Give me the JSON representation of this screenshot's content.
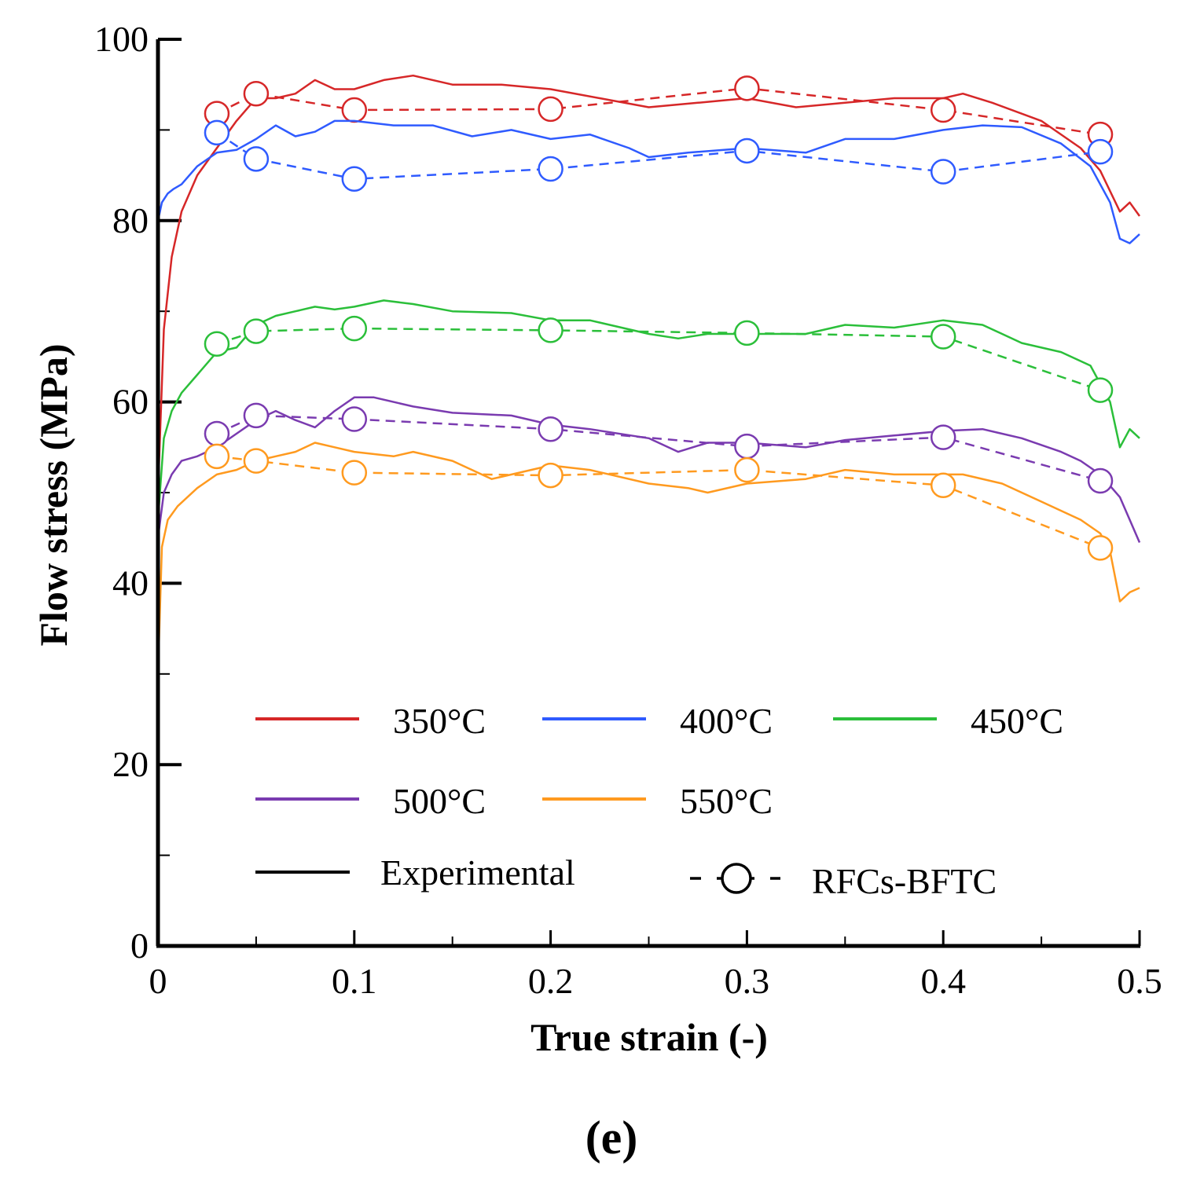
{
  "chart_data": {
    "type": "line",
    "title": "",
    "panel_label": "(e)",
    "xlabel": "True strain (-)",
    "ylabel": "Flow stress (MPa)",
    "xlim": [
      0,
      0.5
    ],
    "ylim": [
      0,
      100
    ],
    "x_ticks": [
      0,
      0.1,
      0.2,
      0.3,
      0.4,
      0.5
    ],
    "x_tick_labels": [
      "0",
      "0.1",
      "0.2",
      "0.3",
      "0.4",
      "0.5"
    ],
    "y_ticks": [
      0,
      20,
      40,
      60,
      80,
      100
    ],
    "y_tick_labels": [
      "0",
      "20",
      "40",
      "60",
      "80",
      "100"
    ],
    "grid": false,
    "legend": {
      "placement": "bottom-center",
      "temperatures": [
        "350°C",
        "400°C",
        "450°C",
        "500°C",
        "550°C"
      ],
      "experimental_label": "Experimental",
      "model_label": "RFCs-BFTC"
    },
    "series": [
      {
        "name": "350°C",
        "color": "#d62728",
        "experimental": {
          "x": [
            0,
            0.003,
            0.007,
            0.012,
            0.02,
            0.03,
            0.04,
            0.05,
            0.06,
            0.07,
            0.08,
            0.09,
            0.1,
            0.115,
            0.13,
            0.15,
            0.175,
            0.2,
            0.225,
            0.25,
            0.275,
            0.3,
            0.325,
            0.35,
            0.375,
            0.4,
            0.41,
            0.425,
            0.45,
            0.47,
            0.48,
            0.49,
            0.495,
            0.5
          ],
          "y": [
            50,
            68,
            76,
            81,
            85,
            88,
            91,
            93.5,
            93.5,
            94,
            95.5,
            94.5,
            94.5,
            95.5,
            96,
            95,
            95,
            94.5,
            93.5,
            92.5,
            93,
            93.5,
            92.5,
            93,
            93.5,
            93.5,
            94,
            93,
            91,
            88,
            85.5,
            81,
            82,
            80.5
          ]
        },
        "model": {
          "x": [
            0.03,
            0.05,
            0.1,
            0.2,
            0.3,
            0.4,
            0.48
          ],
          "y": [
            91.8,
            94,
            92.2,
            92.3,
            94.6,
            92.2,
            89.5
          ]
        }
      },
      {
        "name": "400°C",
        "color": "#2f5bff",
        "experimental": {
          "x": [
            0,
            0.002,
            0.005,
            0.008,
            0.012,
            0.02,
            0.03,
            0.04,
            0.05,
            0.06,
            0.07,
            0.08,
            0.09,
            0.1,
            0.12,
            0.14,
            0.16,
            0.18,
            0.2,
            0.22,
            0.24,
            0.25,
            0.27,
            0.3,
            0.33,
            0.35,
            0.375,
            0.4,
            0.42,
            0.44,
            0.46,
            0.475,
            0.485,
            0.49,
            0.495,
            0.5
          ],
          "y": [
            80,
            82,
            83,
            83.5,
            84,
            86,
            87.5,
            87.8,
            89,
            90.5,
            89.3,
            89.8,
            91,
            91,
            90.5,
            90.5,
            89.3,
            90,
            89,
            89.5,
            88,
            87,
            87.5,
            88,
            87.5,
            89,
            89,
            90,
            90.5,
            90.3,
            88.5,
            86,
            82,
            78,
            77.5,
            78.5
          ]
        },
        "model": {
          "x": [
            0.03,
            0.05,
            0.1,
            0.2,
            0.3,
            0.4,
            0.48
          ],
          "y": [
            89.7,
            86.8,
            84.6,
            85.7,
            87.7,
            85.4,
            87.6
          ]
        }
      },
      {
        "name": "450°C",
        "color": "#2bbf3a",
        "experimental": {
          "x": [
            0,
            0.003,
            0.007,
            0.012,
            0.02,
            0.03,
            0.04,
            0.05,
            0.06,
            0.07,
            0.08,
            0.09,
            0.1,
            0.115,
            0.13,
            0.15,
            0.18,
            0.2,
            0.22,
            0.25,
            0.265,
            0.28,
            0.3,
            0.33,
            0.35,
            0.375,
            0.4,
            0.42,
            0.44,
            0.46,
            0.475,
            0.485,
            0.49,
            0.495,
            0.5
          ],
          "y": [
            47,
            56,
            59,
            61,
            63,
            65.5,
            66,
            68.5,
            69.5,
            70,
            70.5,
            70.2,
            70.5,
            71.2,
            70.8,
            70,
            69.8,
            69,
            69,
            67.5,
            67,
            67.5,
            67.5,
            67.5,
            68.5,
            68.2,
            69,
            68.5,
            66.5,
            65.5,
            64,
            60,
            55,
            57,
            56
          ]
        },
        "model": {
          "x": [
            0.03,
            0.05,
            0.1,
            0.2,
            0.3,
            0.4,
            0.48
          ],
          "y": [
            66.4,
            67.8,
            68.1,
            67.9,
            67.6,
            67.2,
            61.3
          ]
        }
      },
      {
        "name": "500°C",
        "color": "#7a3bb0",
        "experimental": {
          "x": [
            0,
            0.003,
            0.007,
            0.012,
            0.02,
            0.03,
            0.04,
            0.05,
            0.06,
            0.07,
            0.08,
            0.09,
            0.1,
            0.11,
            0.13,
            0.15,
            0.18,
            0.2,
            0.22,
            0.25,
            0.265,
            0.28,
            0.3,
            0.33,
            0.35,
            0.375,
            0.4,
            0.42,
            0.44,
            0.46,
            0.47,
            0.48,
            0.49,
            0.495,
            0.5
          ],
          "y": [
            45,
            50,
            52,
            53.5,
            54,
            55,
            56.5,
            58,
            59,
            58,
            57.2,
            59,
            60.5,
            60.5,
            59.5,
            58.8,
            58.5,
            57.5,
            57,
            56,
            54.5,
            55.5,
            55.5,
            55,
            55.8,
            56.3,
            56.8,
            57,
            56,
            54.5,
            53.5,
            52,
            49.5,
            47,
            44.5
          ]
        },
        "model": {
          "x": [
            0.03,
            0.05,
            0.1,
            0.2,
            0.3,
            0.4,
            0.48
          ],
          "y": [
            56.5,
            58.5,
            58.1,
            57,
            55.1,
            56.1,
            51.3
          ]
        }
      },
      {
        "name": "550°C",
        "color": "#ff9a1f",
        "experimental": {
          "x": [
            0,
            0.002,
            0.005,
            0.01,
            0.02,
            0.03,
            0.04,
            0.05,
            0.06,
            0.07,
            0.08,
            0.09,
            0.1,
            0.12,
            0.13,
            0.15,
            0.17,
            0.2,
            0.22,
            0.25,
            0.27,
            0.28,
            0.3,
            0.33,
            0.35,
            0.375,
            0.4,
            0.41,
            0.43,
            0.45,
            0.47,
            0.48,
            0.485,
            0.49,
            0.495,
            0.5
          ],
          "y": [
            30,
            44,
            47,
            48.5,
            50.5,
            52,
            52.5,
            53.5,
            54,
            54.5,
            55.5,
            55,
            54.5,
            54,
            54.5,
            53.5,
            51.5,
            53,
            52.5,
            51,
            50.5,
            50,
            51,
            51.5,
            52.5,
            52,
            52,
            52,
            51,
            49,
            47,
            45.5,
            43.5,
            38,
            39,
            39.5
          ]
        },
        "model": {
          "x": [
            0.03,
            0.05,
            0.1,
            0.2,
            0.3,
            0.4,
            0.48
          ],
          "y": [
            54,
            53.5,
            52.2,
            51.9,
            52.5,
            50.8,
            43.9
          ]
        }
      }
    ]
  }
}
